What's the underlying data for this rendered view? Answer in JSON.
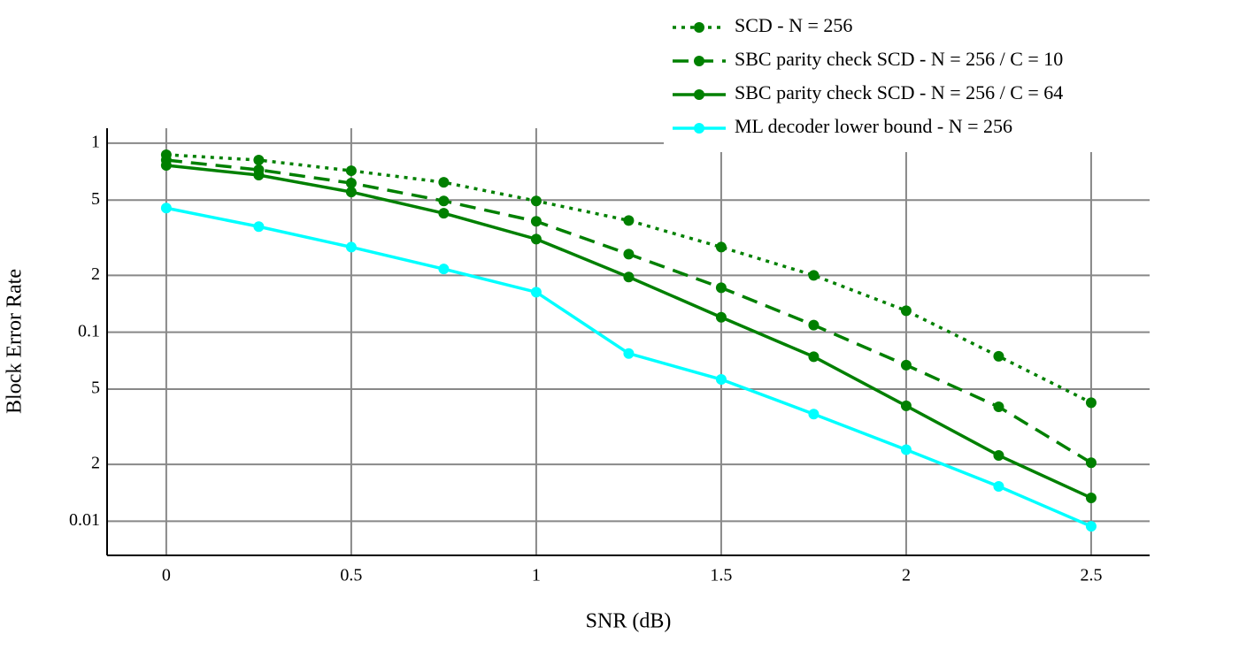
{
  "chart_data": {
    "type": "line",
    "x_label": "SNR (dB)",
    "y_label": "Block Error Rate",
    "x": [
      0,
      0.25,
      0.5,
      0.75,
      1,
      1.25,
      1.5,
      1.75,
      2,
      2.25,
      2.5
    ],
    "series": [
      {
        "name": "SCD - N = 256",
        "color": "#008000",
        "line_style": "dotted",
        "values": [
          0.869,
          0.814,
          0.715,
          0.621,
          0.495,
          0.39,
          0.282,
          0.2,
          0.13,
          0.0746,
          0.0424
        ]
      },
      {
        "name": "SBC parity check SCD - N = 256 / C = 10",
        "color": "#008000",
        "line_style": "dashed",
        "values": [
          0.814,
          0.723,
          0.615,
          0.495,
          0.386,
          0.259,
          0.172,
          0.109,
          0.067,
          0.0403,
          0.0204
        ]
      },
      {
        "name": "SBC parity check SCD - N = 256 / C = 64",
        "color": "#008000",
        "line_style": "solid",
        "values": [
          0.763,
          0.678,
          0.552,
          0.426,
          0.311,
          0.196,
          0.12,
          0.0742,
          0.0408,
          0.0223,
          0.0133
        ]
      },
      {
        "name": "ML decoder lower bound - N = 256",
        "color": "#00ffff",
        "line_style": "solid",
        "values": [
          0.454,
          0.362,
          0.282,
          0.216,
          0.163,
          0.0772,
          0.0563,
          0.0369,
          0.0239,
          0.0153,
          0.0094
        ]
      }
    ],
    "xlim": [
      -0.16,
      2.658
    ],
    "xticks": [
      0,
      0.5,
      1,
      1.5,
      2,
      2.5
    ],
    "ylim": [
      0.0066,
      1.2
    ],
    "y_scale": "log",
    "yticks": [
      1,
      {
        "value": 0.5,
        "label": "5"
      },
      {
        "value": 0.2,
        "label": "2"
      },
      0.1,
      {
        "value": 0.05,
        "label": "5"
      },
      {
        "value": 0.02,
        "label": "2"
      },
      0.01
    ],
    "grid": true,
    "legend": "upper right"
  }
}
